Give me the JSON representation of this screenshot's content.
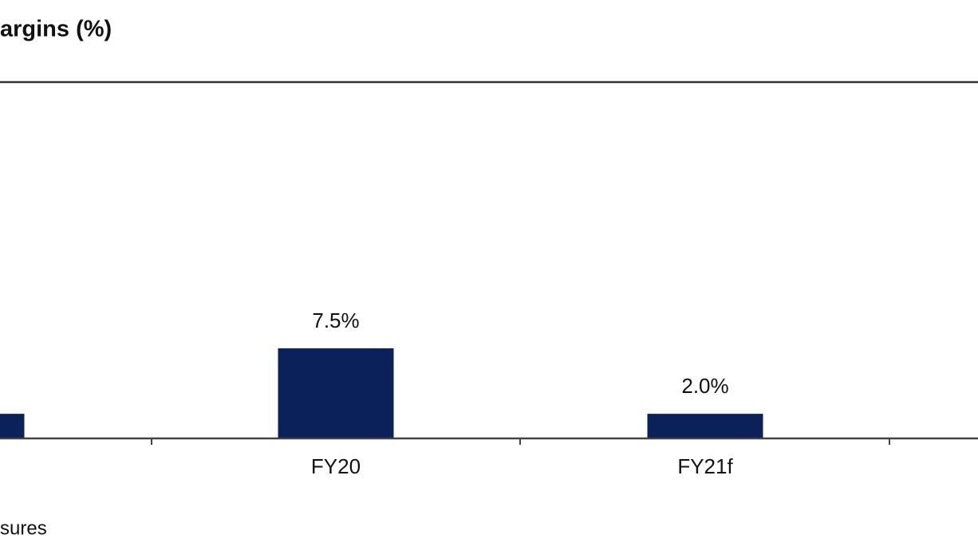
{
  "chart_data": {
    "type": "bar",
    "title": "argins (%)",
    "footnote": "sures",
    "categories": [
      null,
      "FY20",
      "FY21f"
    ],
    "values": [
      2.0,
      7.5,
      2.0
    ],
    "value_labels": [
      null,
      "7.5%",
      "2.0%"
    ],
    "color": "#0b215a"
  }
}
